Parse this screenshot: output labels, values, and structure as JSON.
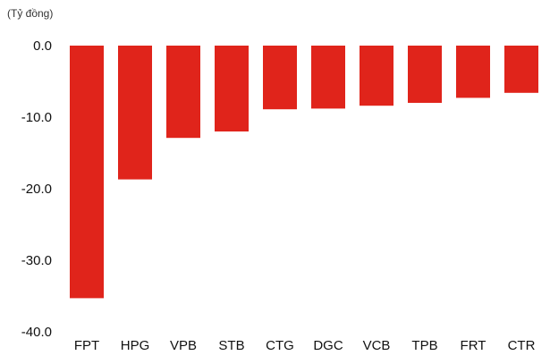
{
  "chart_data": {
    "type": "bar",
    "unit_label": "(Tỷ đồng)",
    "categories": [
      "FPT",
      "HPG",
      "VPB",
      "STB",
      "CTG",
      "DGC",
      "VCB",
      "TPB",
      "FRT",
      "CTR"
    ],
    "values": [
      -35.3,
      -18.7,
      -12.9,
      -12.0,
      -8.9,
      -8.8,
      -8.4,
      -8.0,
      -7.3,
      -6.6
    ],
    "yticks": [
      0,
      -10,
      -20,
      -30,
      -40
    ],
    "ytick_labels": [
      "0.0",
      "-10.0",
      "-20.0",
      "-30.0",
      "-40.0"
    ],
    "ylim": [
      -40,
      0
    ],
    "grid": false,
    "bar_color": "#e0241b"
  }
}
